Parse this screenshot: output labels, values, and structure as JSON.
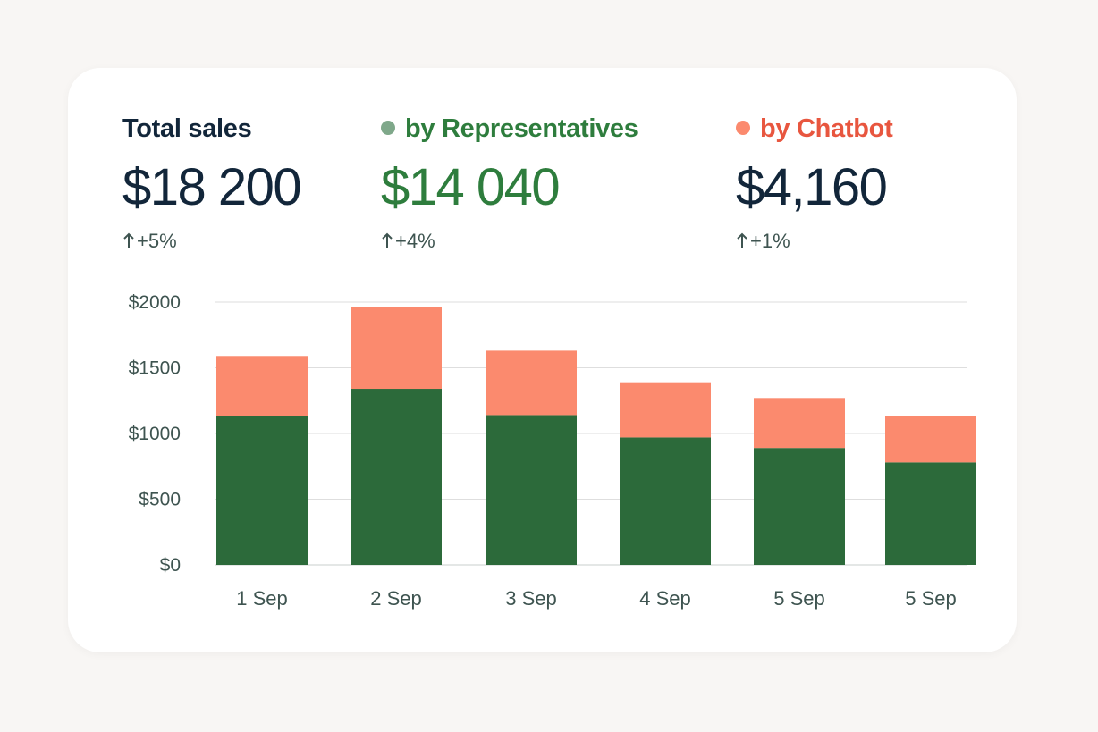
{
  "colors": {
    "dark_text": "#12263a",
    "representatives": "#2c6a3a",
    "representatives_text": "#2e7d3d",
    "representatives_dot": "#7fa88a",
    "chatbot": "#fb8a6e",
    "chatbot_text": "#e8563f",
    "muted_text": "#3e5450",
    "grid": "#dedede"
  },
  "summary": {
    "total": {
      "label": "Total sales",
      "value": "$18 200",
      "change": "+5%",
      "change_icon": "arrow-up-icon"
    },
    "representatives": {
      "label": "by Representatives",
      "value": "$14 040",
      "change": "+4%",
      "change_icon": "arrow-up-icon",
      "marker_icon": "dot-icon"
    },
    "chatbot": {
      "label": "by Chatbot",
      "value": "$4,160",
      "change": "+1%",
      "change_icon": "arrow-up-icon",
      "marker_icon": "dot-icon"
    }
  },
  "chart_data": {
    "type": "bar",
    "stacked": true,
    "categories": [
      "1 Sep",
      "2 Sep",
      "3 Sep",
      "4 Sep",
      "5 Sep",
      "5 Sep"
    ],
    "series": [
      {
        "name": "by Representatives",
        "values": [
          1130,
          1340,
          1140,
          970,
          890,
          780
        ],
        "color": "#2c6a3a"
      },
      {
        "name": "by Chatbot",
        "values": [
          460,
          620,
          490,
          420,
          380,
          350
        ],
        "color": "#fb8a6e"
      }
    ],
    "y_ticks": [
      "$0",
      "$500",
      "$1000",
      "$1500",
      "$2000"
    ],
    "ylim": [
      0,
      2000
    ],
    "grid": true,
    "legend": "top"
  }
}
